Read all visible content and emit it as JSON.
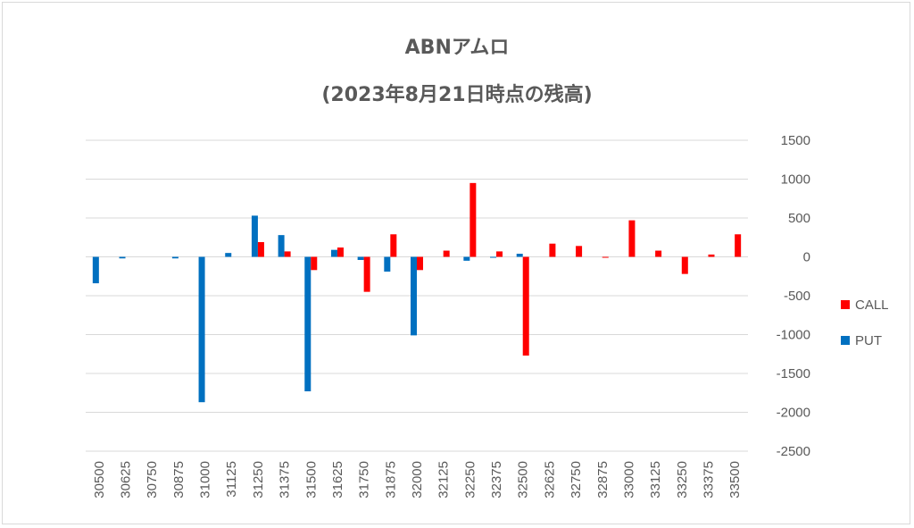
{
  "chart_data": {
    "type": "bar",
    "title": "ABNアムロ",
    "subtitle": "(2023年8月21日時点の残高)",
    "categories": [
      "30500",
      "30625",
      "30750",
      "30875",
      "31000",
      "31125",
      "31250",
      "31375",
      "31500",
      "31625",
      "31750",
      "31875",
      "32000",
      "32125",
      "32250",
      "32375",
      "32500",
      "32625",
      "32750",
      "32875",
      "33000",
      "33125",
      "33250",
      "33375",
      "33500"
    ],
    "series": [
      {
        "name": "CALL",
        "color": "#ff0000",
        "values": [
          0,
          0,
          0,
          0,
          0,
          0,
          190,
          70,
          -170,
          120,
          -450,
          290,
          -170,
          80,
          950,
          70,
          -1270,
          170,
          140,
          -10,
          470,
          80,
          -220,
          30,
          290
        ]
      },
      {
        "name": "PUT",
        "color": "#0070c0",
        "values": [
          -340,
          -20,
          0,
          -20,
          -1870,
          50,
          530,
          280,
          -1730,
          90,
          -40,
          -190,
          -1010,
          0,
          -50,
          -10,
          40,
          0,
          0,
          0,
          0,
          0,
          0,
          0,
          0
        ]
      }
    ],
    "ylim": [
      -2500,
      1500
    ],
    "yticks": [
      -2500,
      -2000,
      -1500,
      -1000,
      -500,
      0,
      500,
      1000,
      1500
    ],
    "grid": true,
    "legend_position": "right",
    "legend_order": [
      "CALL",
      "PUT"
    ],
    "xlabel": "",
    "ylabel": ""
  }
}
